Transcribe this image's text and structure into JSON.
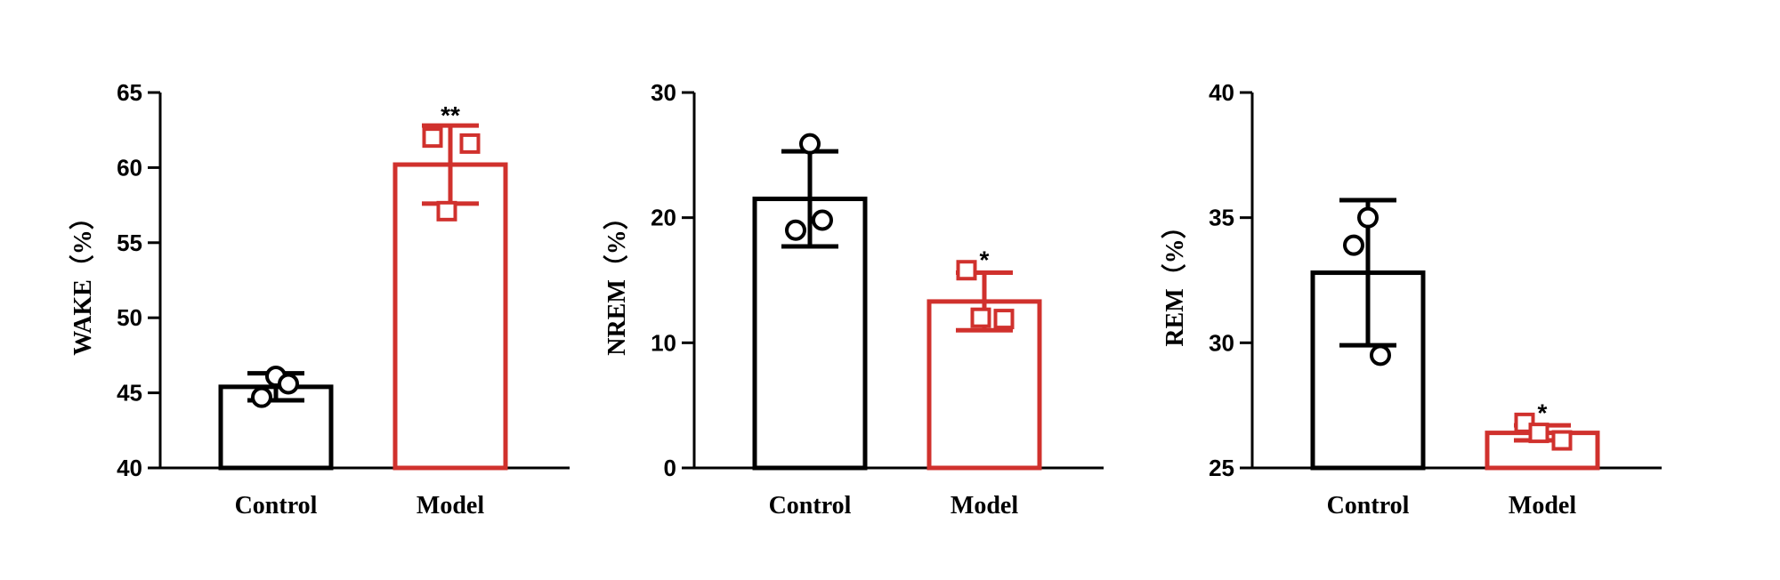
{
  "colors": {
    "control": "#000000",
    "model": "#d0312d",
    "axis": "#000000"
  },
  "chart_data": [
    {
      "type": "bar",
      "categories": [
        "Control",
        "Model"
      ],
      "ylabel": "WAKE（%）",
      "ylim": [
        40,
        65
      ],
      "yticks": [
        40,
        45,
        50,
        55,
        60,
        65
      ],
      "means": [
        45.4,
        60.2
      ],
      "errors": [
        0.9,
        2.6
      ],
      "points": [
        [
          46.1,
          44.7,
          45.6
        ],
        [
          62.0,
          61.6,
          57.1
        ]
      ],
      "markers": [
        "circle",
        "square"
      ],
      "significance": [
        "",
        "**"
      ]
    },
    {
      "type": "bar",
      "categories": [
        "Control",
        "Model"
      ],
      "ylabel": "NREM（%）",
      "ylim": [
        0,
        30
      ],
      "yticks": [
        0,
        10,
        20,
        30
      ],
      "means": [
        21.5,
        13.3
      ],
      "errors": [
        3.8,
        2.3
      ],
      "points": [
        [
          25.9,
          19.0,
          19.8
        ],
        [
          15.8,
          11.9,
          12.0
        ]
      ],
      "markers": [
        "circle",
        "square"
      ],
      "significance": [
        "",
        "*"
      ]
    },
    {
      "type": "bar",
      "categories": [
        "Control",
        "Model"
      ],
      "ylabel": "REM（%）",
      "ylim": [
        25,
        40
      ],
      "yticks": [
        25,
        30,
        35,
        40
      ],
      "means": [
        32.8,
        26.4
      ],
      "errors": [
        2.9,
        0.3
      ],
      "points": [
        [
          35.0,
          33.9,
          29.5
        ],
        [
          26.8,
          26.1,
          26.4
        ]
      ],
      "markers": [
        "circle",
        "square"
      ],
      "significance": [
        "",
        "*"
      ]
    }
  ]
}
